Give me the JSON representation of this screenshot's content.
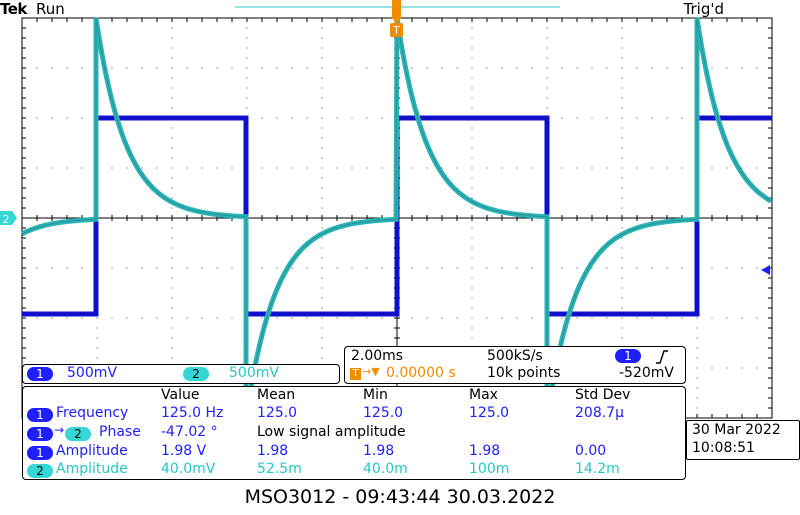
{
  "header": {
    "brand": "Tek",
    "run_state": "Run",
    "trigger_status": "Trig'd"
  },
  "markers": {
    "trigger_top": "T",
    "ch2_ground": "2"
  },
  "channels": [
    {
      "num": "1",
      "scale": "500mV",
      "color": "#2020ff"
    },
    {
      "num": "2",
      "scale": "500mV",
      "color": "#29c6c6"
    }
  ],
  "timebase": {
    "time_div": "2.00ms",
    "sample_rate": "500kS/s",
    "trigger_pos_label": "T",
    "trigger_pos": "0.00000 s",
    "record_length": "10k points",
    "trig_source": "1",
    "trig_slope": "rising-edge-icon",
    "trig_level": "-520mV"
  },
  "measurements": {
    "headers": [
      "Value",
      "Mean",
      "Min",
      "Max",
      "Std Dev"
    ],
    "rows": [
      {
        "ch": "1",
        "ch2": "",
        "name": "Frequency",
        "value": "125.0 Hz",
        "mean": "125.0",
        "min": "125.0",
        "max": "125.0",
        "std": "208.7µ"
      },
      {
        "ch": "1",
        "ch2": "2",
        "name": "Phase",
        "value": "-47.02 °",
        "note": "Low signal amplitude"
      },
      {
        "ch": "1",
        "ch2": "",
        "name": "Amplitude",
        "value": "1.98 V",
        "mean": "1.98",
        "min": "1.98",
        "max": "1.98",
        "std": "0.00"
      },
      {
        "ch": "2",
        "ch2": "",
        "name": "Amplitude",
        "value": "40.0mV",
        "mean": "52.5m",
        "min": "40.0m",
        "max": "100m",
        "std": "14.2m"
      }
    ]
  },
  "clock": {
    "date": "30 Mar 2022",
    "time": "10:08:51"
  },
  "footer": "MSO3012 - 09:43:44   30.03.2022"
}
